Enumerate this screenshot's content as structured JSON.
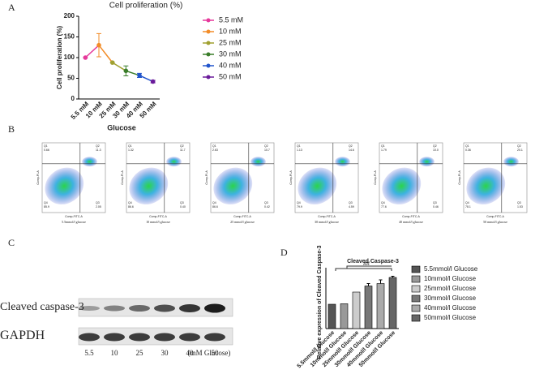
{
  "panel_labels": [
    "A",
    "B",
    "C",
    "D"
  ],
  "chart_data": [
    {
      "type": "line",
      "title": "Cell proliferation (%)",
      "x_label": "Glucose",
      "y_label": "Cell proliferation (%)",
      "categories": [
        "5.5 mM",
        "10 mM",
        "25 mM",
        "30 mM",
        "40 mM",
        "50 mM"
      ],
      "values": [
        100,
        130,
        88,
        68,
        57,
        42
      ],
      "errors": [
        0,
        28,
        0,
        12,
        5,
        3
      ],
      "colors": [
        "#e6399b",
        "#f28c28",
        "#a0a030",
        "#3a7d2a",
        "#2255cc",
        "#6a1b9a"
      ],
      "ylim": [
        0,
        200
      ],
      "yticks": [
        0,
        50,
        100,
        150,
        200
      ]
    },
    {
      "type": "bar",
      "title": "Cleaved Caspase-3",
      "y_label": "Relative expression of Cleaved Caspase-3",
      "annotation": "##",
      "categories": [
        "5.5mmol/l Glucose",
        "10mmol/l Glucose",
        "25mmol/l Glucose",
        "30mmol/l Glucose",
        "40mmol/l Glucose",
        "50mmol/l Glucose"
      ],
      "values": [
        1.0,
        1.02,
        1.5,
        1.75,
        1.85,
        2.1
      ],
      "errors": [
        0,
        0,
        0,
        0.1,
        0.15,
        0.05
      ],
      "colors": [
        "#555555",
        "#999999",
        "#cccccc",
        "#777777",
        "#aaaaaa",
        "#666666"
      ],
      "ylim": [
        0,
        2.5
      ]
    }
  ],
  "flow": {
    "x_label": "Comp-FITC-A",
    "y_label": "Comp-PI-A",
    "quadrants": [
      "Q1",
      "Q2",
      "Q3",
      "Q4"
    ],
    "plots": [
      {
        "caption": "5.5mmol/l glucose",
        "values": [
          "0.66",
          "11.3",
          "2.05",
          "85.9"
        ]
      },
      {
        "caption": "10 mmol/l glucose",
        "values": [
          "1.32",
          "11.7",
          "0.40",
          "86.6"
        ]
      },
      {
        "caption": "25 mmol/l glucose",
        "values": [
          "2.63",
          "10.7",
          "0.42",
          "86.6"
        ]
      },
      {
        "caption": "30 mmol/l glucose",
        "values": [
          "1.13",
          "14.6",
          "4.59",
          "79.9"
        ]
      },
      {
        "caption": "40 mmol/l glucose",
        "values": [
          "1.79",
          "10.0",
          "0.46",
          "77.6"
        ]
      },
      {
        "caption": "50 mmol/l glucose",
        "values": [
          "0.36",
          "20.1",
          "1.53",
          "78.1"
        ]
      }
    ]
  },
  "blot": {
    "bands": [
      "Cleaved caspase-3",
      "GAPDH"
    ],
    "lanes": [
      "5.5",
      "10",
      "25",
      "30",
      "40",
      "50"
    ],
    "unit": "(mM Glucose)"
  }
}
